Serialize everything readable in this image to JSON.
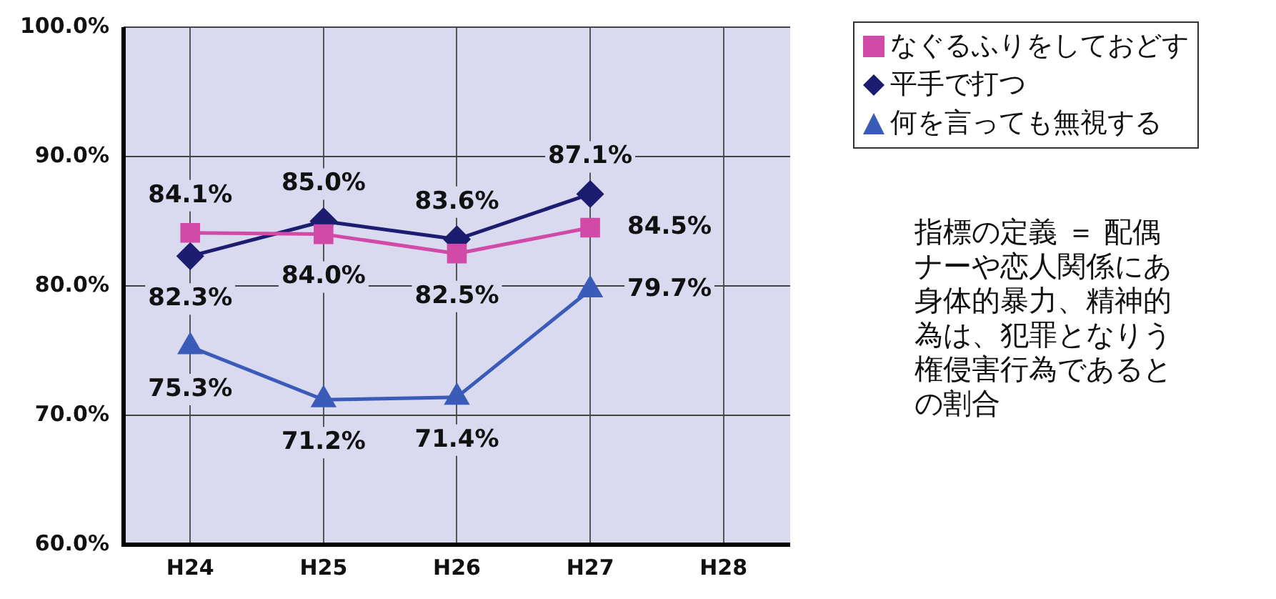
{
  "chart_data": {
    "type": "line",
    "categories": [
      "H24",
      "H25",
      "H26",
      "H27",
      "H28"
    ],
    "series": [
      {
        "name": "なぐるふりをしておどす",
        "color": "#d24aa8",
        "marker": "square",
        "values": [
          84.1,
          84.0,
          82.5,
          84.5,
          null
        ],
        "value_labels": [
          "84.1%",
          "84.0%",
          "82.5%",
          "84.5%",
          null
        ]
      },
      {
        "name": "平手で打つ",
        "color": "#1c1c70",
        "marker": "diamond",
        "values": [
          82.3,
          85.0,
          83.6,
          87.1,
          null
        ],
        "value_labels": [
          "82.3%",
          "85.0%",
          "83.6%",
          "87.1%",
          null
        ]
      },
      {
        "name": "何を言っても無視する",
        "color": "#3a5cb8",
        "marker": "triangle",
        "values": [
          75.3,
          71.2,
          71.4,
          79.7,
          null
        ],
        "value_labels": [
          "75.3%",
          "71.2%",
          "71.4%",
          "79.7%",
          null
        ]
      }
    ],
    "ylim": [
      60,
      100
    ],
    "yticks": [
      {
        "value": 60,
        "label": "60.0%"
      },
      {
        "value": 70,
        "label": "70.0%"
      },
      {
        "value": 80,
        "label": "80.0%"
      },
      {
        "value": 90,
        "label": "90.0%"
      },
      {
        "value": 100,
        "label": "100.0%"
      }
    ],
    "grid": true,
    "legend": "top right",
    "line_style": "solid",
    "annotations": [
      "指標の定義 ＝ 配偶",
      "ナーや恋人関係にあ",
      "身体的暴力、精神的",
      "為は、犯罪となりう",
      "権侵害行為であると",
      "の割合"
    ]
  }
}
